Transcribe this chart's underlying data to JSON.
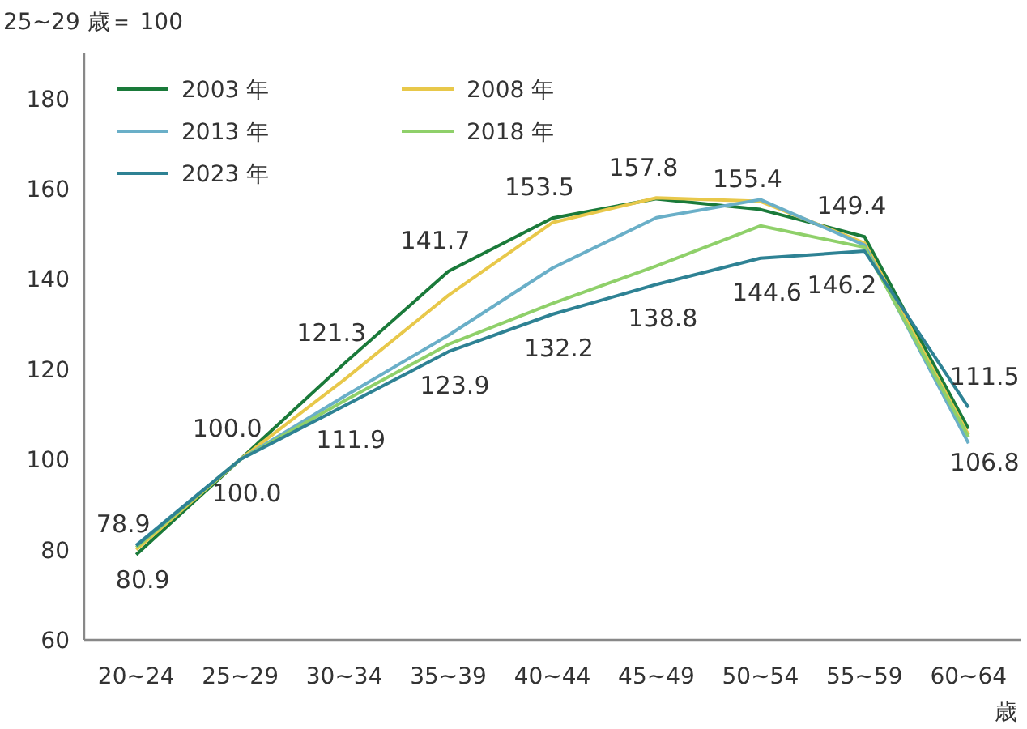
{
  "chart_data": {
    "type": "line",
    "ylabel": "25~29 歳＝ 100",
    "xlabel": "歳",
    "categories": [
      "20~24",
      "25~29",
      "30~34",
      "35~39",
      "40~44",
      "45~49",
      "50~54",
      "55~59",
      "60~64"
    ],
    "ylim": [
      60,
      190
    ],
    "yticks": [
      60,
      80,
      100,
      120,
      140,
      160,
      180
    ],
    "grid": false,
    "legend": "top left",
    "marker": "none",
    "line_style": "solid",
    "series": [
      {
        "name": "2003 年",
        "color": "#1a7a3a",
        "values": [
          78.9,
          100.0,
          121.3,
          141.7,
          153.5,
          157.8,
          155.4,
          149.4,
          106.8
        ],
        "value_labels": [
          "78.9",
          "100.0",
          "121.3",
          "141.7",
          "153.5",
          "157.8",
          "155.4",
          "149.4",
          "106.8"
        ]
      },
      {
        "name": "2008 年",
        "color": "#e8c84a",
        "values": [
          80,
          100,
          117.7,
          136.4,
          152.5,
          158,
          157.2,
          148,
          105.5
        ]
      },
      {
        "name": "2013 年",
        "color": "#6aafc8",
        "values": [
          81,
          100,
          114,
          127.5,
          142.4,
          153.6,
          157.6,
          147.5,
          103.6
        ]
      },
      {
        "name": "2018 年",
        "color": "#8fd06a",
        "values": [
          80.5,
          100,
          113,
          125.5,
          134.6,
          142.9,
          151.8,
          147,
          105
        ]
      },
      {
        "name": "2023 年",
        "color": "#2e8294",
        "values": [
          80.9,
          100.0,
          111.9,
          123.9,
          132.2,
          138.8,
          144.6,
          146.2,
          111.5
        ],
        "value_labels": [
          "80.9",
          "100.0",
          "111.9",
          "123.9",
          "132.2",
          "138.8",
          "144.6",
          "146.2",
          "111.5"
        ]
      }
    ]
  }
}
